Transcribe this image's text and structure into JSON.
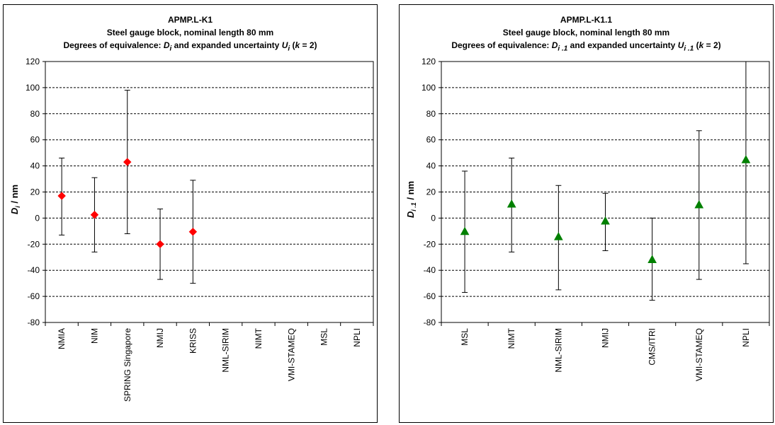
{
  "charts": [
    {
      "title": "APMP.L-K1",
      "subtitle": "Steel gauge block, nominal length 80 mm",
      "subtitle2_prefix": "Degrees of equivalence: ",
      "subtitle2_d": "D",
      "subtitle2_d_sub": "i",
      "subtitle2_mid": "  and expanded uncertainty ",
      "subtitle2_u": "U",
      "subtitle2_u_sub": "i",
      "subtitle2_k_open": "  (",
      "subtitle2_k": "k",
      "subtitle2_k_close": " = 2)",
      "ylabel_var": "D",
      "ylabel_sub": "i",
      "ylabel_unit": " / nm"
    },
    {
      "title": "APMP.L-K1.1",
      "subtitle": "Steel gauge block, nominal length 80 mm",
      "subtitle2_prefix": "Degrees of equivalence: ",
      "subtitle2_d": "D",
      "subtitle2_d_sub": "i .1",
      "subtitle2_mid": " and expanded uncertainty ",
      "subtitle2_u": "U",
      "subtitle2_u_sub": "i .1",
      "subtitle2_k_open": " (",
      "subtitle2_k": "k",
      "subtitle2_k_close": " = 2)",
      "ylabel_var": "D",
      "ylabel_sub": "i .1",
      "ylabel_unit": " / nm"
    }
  ],
  "chart_data": [
    {
      "type": "scatter",
      "marker": "diamond",
      "marker_color": "#ff0000",
      "title": "APMP.L-K1",
      "subtitle": "Steel gauge block, nominal length 80 mm",
      "ylabel": "Di / nm",
      "ylim": [
        -80,
        120
      ],
      "yticks": [
        -80,
        -60,
        -40,
        -20,
        0,
        20,
        40,
        60,
        80,
        100,
        120
      ],
      "grid": "horizontal dashed",
      "categories": [
        "NMIA",
        "NIM",
        "SPRING Singapore",
        "NMIJ",
        "KRISS",
        "NML-SIRIM",
        "NIMT",
        "VMI-STAMEQ",
        "MSL",
        "NPLI"
      ],
      "values": [
        17,
        2.5,
        43,
        -20,
        -10.5,
        null,
        null,
        null,
        null,
        null
      ],
      "err_low": [
        -13,
        -26,
        -12,
        -47,
        -50,
        null,
        null,
        null,
        null,
        null
      ],
      "err_high": [
        46,
        31,
        98,
        7,
        29,
        null,
        null,
        null,
        null,
        null
      ]
    },
    {
      "type": "scatter",
      "marker": "triangle",
      "marker_color": "#008000",
      "title": "APMP.L-K1.1",
      "subtitle": "Steel gauge block, nominal length 80 mm",
      "ylabel": "Di.1 / nm",
      "ylim": [
        -80,
        120
      ],
      "yticks": [
        -80,
        -60,
        -40,
        -20,
        0,
        20,
        40,
        60,
        80,
        100,
        120
      ],
      "grid": "horizontal dashed",
      "categories": [
        "MSL",
        "NIMT",
        "NML-SIRIM",
        "NMIJ",
        "CMS/ITRI",
        "VMI-STAMEQ",
        "NPLI"
      ],
      "values": [
        -10.5,
        10.5,
        -14.5,
        -2.5,
        -32,
        10,
        44.5
      ],
      "err_low": [
        -57,
        -26,
        -55,
        -25,
        -63,
        -47,
        -35
      ],
      "err_high": [
        36,
        46,
        25,
        19,
        0,
        67,
        122
      ]
    }
  ]
}
